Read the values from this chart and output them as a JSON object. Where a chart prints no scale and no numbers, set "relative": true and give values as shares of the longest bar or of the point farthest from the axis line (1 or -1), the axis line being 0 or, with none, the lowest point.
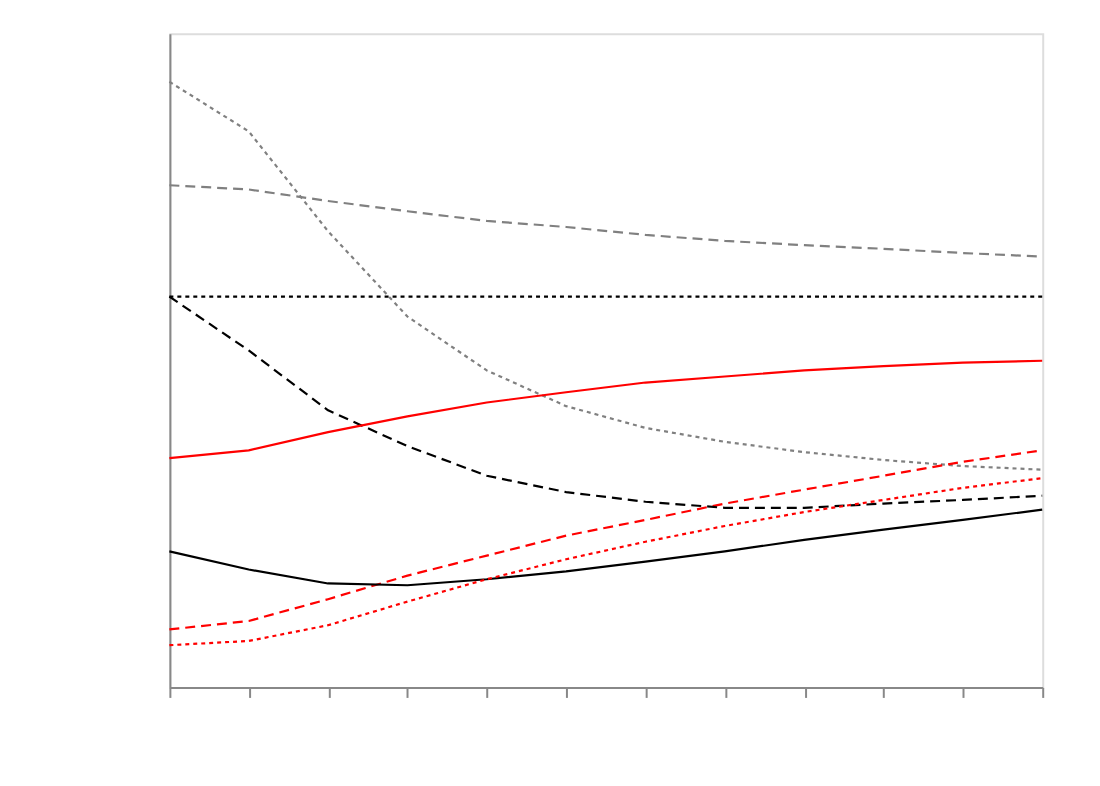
{
  "chart_data": {
    "type": "line",
    "relative": true,
    "grid": false,
    "tick_labels": false,
    "marker": "none",
    "categories": [
      null,
      null,
      null,
      null,
      null,
      null,
      null,
      null,
      null,
      null,
      null,
      null
    ],
    "series": [
      {
        "color": "#808080",
        "line_style": "dotted",
        "values": [
          1.0,
          0.918,
          0.753,
          0.612,
          0.523,
          0.464,
          0.428,
          0.405,
          0.388,
          0.375,
          0.365,
          0.359
        ]
      },
      {
        "color": "#ff0000",
        "line_style": "dashed",
        "values": [
          0.095,
          0.109,
          0.145,
          0.184,
          0.217,
          0.25,
          0.276,
          0.303,
          0.326,
          0.349,
          0.372,
          0.391
        ]
      },
      {
        "color": "#000000",
        "line_style": "dashed",
        "values": [
          0.645,
          0.556,
          0.457,
          0.398,
          0.349,
          0.322,
          0.306,
          0.296,
          0.296,
          0.303,
          0.309,
          0.316
        ]
      },
      {
        "color": "#ff0000",
        "line_style": "solid",
        "values": [
          0.378,
          0.391,
          0.421,
          0.447,
          0.47,
          0.487,
          0.503,
          0.513,
          0.523,
          0.53,
          0.536,
          0.539
        ]
      },
      {
        "color": "#000000",
        "line_style": "solid",
        "values": [
          0.224,
          0.194,
          0.171,
          0.168,
          0.178,
          0.191,
          0.207,
          0.224,
          0.243,
          0.26,
          0.276,
          0.293
        ]
      },
      {
        "color": "#000000",
        "line_style": "dotted",
        "values": [
          0.645,
          0.645,
          0.645,
          0.645,
          0.645,
          0.645,
          0.645,
          0.645,
          0.645,
          0.645,
          0.645,
          0.645
        ]
      },
      {
        "color": "#ff0000",
        "line_style": "dotted",
        "values": [
          0.069,
          0.076,
          0.102,
          0.141,
          0.178,
          0.211,
          0.24,
          0.266,
          0.289,
          0.309,
          0.329,
          0.345
        ]
      },
      {
        "color": "#808080",
        "line_style": "dashed",
        "values": [
          0.829,
          0.822,
          0.803,
          0.786,
          0.77,
          0.76,
          0.747,
          0.737,
          0.73,
          0.724,
          0.717,
          0.711
        ]
      }
    ]
  }
}
